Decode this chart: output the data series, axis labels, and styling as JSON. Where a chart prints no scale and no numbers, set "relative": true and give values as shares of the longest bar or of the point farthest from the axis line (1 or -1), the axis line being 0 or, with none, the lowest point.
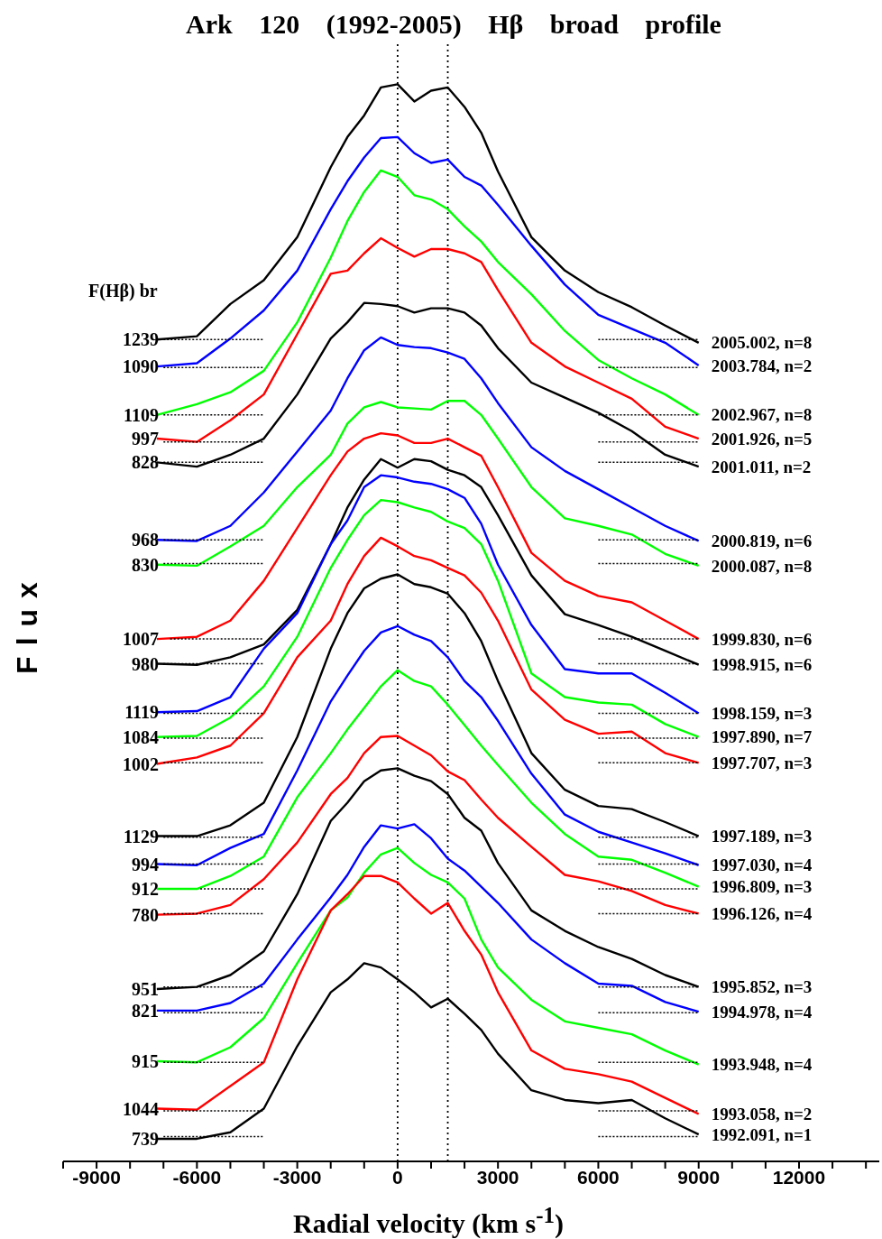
{
  "chart_data": {
    "type": "line",
    "relative": true,
    "title": "Ark 120 (1992-2005) Hβ broad profile",
    "xlabel": "Radial velocity (km s$^{-1}$)",
    "ylabel": "Flux",
    "tick_labels": "x",
    "xlim": [
      -10000,
      14400
    ],
    "xticks": [
      {
        "value": -10000,
        "label": null
      },
      -9000,
      {
        "value": -8000,
        "label": null
      },
      {
        "value": -7000,
        "label": null
      },
      -6000,
      {
        "value": -5000,
        "label": null
      },
      {
        "value": -4000,
        "label": null
      },
      -3000,
      {
        "value": -2000,
        "label": null
      },
      {
        "value": -1000,
        "label": null
      },
      0,
      {
        "value": 1000,
        "label": null
      },
      {
        "value": 2000,
        "label": null
      },
      3000,
      {
        "value": 4000,
        "label": null
      },
      {
        "value": 5000,
        "label": null
      },
      6000,
      {
        "value": 7000,
        "label": null
      },
      {
        "value": 8000,
        "label": null
      },
      9000,
      {
        "value": 10000,
        "label": null
      },
      {
        "value": 11000,
        "label": null
      },
      12000,
      {
        "value": 13000,
        "label": null
      },
      {
        "value": 14000,
        "label": null
      }
    ],
    "ref_lines": [
      {
        "axis": "x",
        "value": 0,
        "color": "#000000",
        "line_style": "dotted"
      },
      {
        "axis": "x",
        "value": 1500,
        "color": "#000000",
        "line_style": "dotted"
      }
    ],
    "x": [
      -7200,
      -6000,
      -5000,
      -4000,
      -3000,
      -2000,
      -1500,
      -1000,
      -500,
      0,
      500,
      1000,
      1500,
      2000,
      2500,
      3000,
      4000,
      5000,
      6000,
      7000,
      8000,
      9000
    ],
    "series": [
      {
        "name": "2005.002, n=8",
        "color": "#000000",
        "values": [
          0.763,
          0.766,
          0.796,
          0.818,
          0.858,
          0.923,
          0.951,
          0.971,
          0.997,
          1.0,
          0.984,
          0.994,
          0.997,
          0.979,
          0.955,
          0.919,
          0.858,
          0.827,
          0.807,
          0.793,
          0.776,
          0.76
        ]
      },
      {
        "name": "2003.784, n=2",
        "color": "#0000ff",
        "values": [
          0.738,
          0.741,
          0.764,
          0.79,
          0.827,
          0.884,
          0.91,
          0.932,
          0.95,
          0.951,
          0.936,
          0.927,
          0.93,
          0.914,
          0.906,
          0.888,
          0.85,
          0.814,
          0.786,
          0.773,
          0.76,
          0.739
        ]
      },
      {
        "name": "2002.967, n=8",
        "color": "#00ff00",
        "values": [
          0.693,
          0.703,
          0.714,
          0.734,
          0.779,
          0.839,
          0.873,
          0.9,
          0.92,
          0.914,
          0.897,
          0.893,
          0.884,
          0.868,
          0.854,
          0.835,
          0.805,
          0.771,
          0.744,
          0.727,
          0.712,
          0.693
        ]
      },
      {
        "name": "2001.926, n=5",
        "color": "#ff0000",
        "values": [
          0.671,
          0.668,
          0.688,
          0.712,
          0.768,
          0.824,
          0.827,
          0.843,
          0.857,
          0.848,
          0.84,
          0.847,
          0.847,
          0.843,
          0.835,
          0.809,
          0.76,
          0.738,
          0.723,
          0.708,
          0.682,
          0.671
        ]
      },
      {
        "name": "2001.011, n=2",
        "color": "#000000",
        "values": [
          0.649,
          0.645,
          0.656,
          0.671,
          0.712,
          0.764,
          0.779,
          0.797,
          0.796,
          0.794,
          0.788,
          0.792,
          0.792,
          0.788,
          0.776,
          0.755,
          0.723,
          0.709,
          0.695,
          0.678,
          0.656,
          0.645
        ]
      },
      {
        "name": "2000.819, n=6",
        "color": "#0000ff",
        "values": [
          0.577,
          0.576,
          0.59,
          0.621,
          0.659,
          0.697,
          0.727,
          0.753,
          0.765,
          0.758,
          0.756,
          0.755,
          0.751,
          0.745,
          0.727,
          0.704,
          0.663,
          0.641,
          0.624,
          0.607,
          0.59,
          0.576
        ]
      },
      {
        "name": "2000.087, n=8",
        "color": "#00ff00",
        "values": [
          0.554,
          0.553,
          0.571,
          0.59,
          0.626,
          0.656,
          0.685,
          0.7,
          0.705,
          0.7,
          0.699,
          0.698,
          0.706,
          0.706,
          0.693,
          0.671,
          0.626,
          0.597,
          0.59,
          0.582,
          0.564,
          0.553
        ]
      },
      {
        "name": "1999.830, n=6",
        "color": "#ff0000",
        "values": [
          0.485,
          0.487,
          0.502,
          0.539,
          0.588,
          0.637,
          0.659,
          0.671,
          0.676,
          0.674,
          0.667,
          0.667,
          0.671,
          0.663,
          0.655,
          0.626,
          0.565,
          0.539,
          0.525,
          0.519,
          0.502,
          0.485
        ]
      },
      {
        "name": "1998.915, n=6",
        "color": "#000000",
        "values": [
          0.462,
          0.461,
          0.468,
          0.48,
          0.512,
          0.573,
          0.607,
          0.633,
          0.652,
          0.644,
          0.652,
          0.65,
          0.642,
          0.637,
          0.626,
          0.6,
          0.544,
          0.508,
          0.498,
          0.487,
          0.474,
          0.461
        ]
      },
      {
        "name": "1998.159, n=3",
        "color": "#0000ff",
        "values": [
          0.417,
          0.418,
          0.431,
          0.476,
          0.509,
          0.573,
          0.595,
          0.626,
          0.637,
          0.635,
          0.631,
          0.629,
          0.624,
          0.616,
          0.592,
          0.554,
          0.498,
          0.457,
          0.453,
          0.453,
          0.435,
          0.416
        ]
      },
      {
        "name": "1997.890, n=7",
        "color": "#00ff00",
        "values": [
          0.394,
          0.395,
          0.412,
          0.441,
          0.487,
          0.551,
          0.577,
          0.6,
          0.614,
          0.612,
          0.607,
          0.603,
          0.594,
          0.588,
          0.573,
          0.539,
          0.453,
          0.431,
          0.426,
          0.424,
          0.406,
          0.394
        ]
      },
      {
        "name": "1997.707, n=3",
        "color": "#ff0000",
        "values": [
          0.369,
          0.375,
          0.386,
          0.416,
          0.468,
          0.502,
          0.536,
          0.562,
          0.579,
          0.571,
          0.562,
          0.558,
          0.551,
          0.544,
          0.528,
          0.502,
          0.438,
          0.41,
          0.397,
          0.399,
          0.379,
          0.37
        ]
      },
      {
        "name": "1997.189, n=3",
        "color": "#000000",
        "values": [
          0.302,
          0.302,
          0.312,
          0.333,
          0.394,
          0.476,
          0.509,
          0.532,
          0.541,
          0.545,
          0.536,
          0.533,
          0.527,
          0.509,
          0.483,
          0.446,
          0.379,
          0.345,
          0.33,
          0.327,
          0.315,
          0.302
        ]
      },
      {
        "name": "1997.030, n=4",
        "color": "#0000ff",
        "values": [
          0.276,
          0.275,
          0.291,
          0.304,
          0.363,
          0.427,
          0.451,
          0.474,
          0.491,
          0.497,
          0.489,
          0.483,
          0.468,
          0.446,
          0.431,
          0.409,
          0.36,
          0.322,
          0.306,
          0.296,
          0.286,
          0.275
        ]
      },
      {
        "name": "1996.809, n=3",
        "color": "#00ff00",
        "values": [
          0.253,
          0.253,
          0.265,
          0.283,
          0.338,
          0.379,
          0.401,
          0.421,
          0.441,
          0.456,
          0.446,
          0.441,
          0.424,
          0.405,
          0.386,
          0.368,
          0.333,
          0.304,
          0.283,
          0.28,
          0.268,
          0.255
        ]
      },
      {
        "name": "1996.126, n=4",
        "color": "#ff0000",
        "values": [
          0.229,
          0.23,
          0.238,
          0.262,
          0.296,
          0.341,
          0.356,
          0.379,
          0.394,
          0.395,
          0.386,
          0.377,
          0.362,
          0.354,
          0.336,
          0.319,
          0.292,
          0.266,
          0.26,
          0.251,
          0.238,
          0.23
        ]
      },
      {
        "name": "1995.852, n=3",
        "color": "#000000",
        "values": [
          0.16,
          0.162,
          0.173,
          0.195,
          0.248,
          0.316,
          0.333,
          0.353,
          0.363,
          0.365,
          0.358,
          0.353,
          0.341,
          0.319,
          0.307,
          0.277,
          0.233,
          0.214,
          0.199,
          0.188,
          0.173,
          0.162
        ]
      },
      {
        "name": "1994.978, n=4",
        "color": "#0000ff",
        "values": [
          0.14,
          0.14,
          0.147,
          0.165,
          0.206,
          0.245,
          0.266,
          0.292,
          0.312,
          0.309,
          0.313,
          0.3,
          0.281,
          0.27,
          0.255,
          0.24,
          0.206,
          0.184,
          0.165,
          0.163,
          0.148,
          0.139
        ]
      },
      {
        "name": "1993.948, n=4",
        "color": "#00ff00",
        "values": [
          0.093,
          0.092,
          0.106,
          0.133,
          0.184,
          0.233,
          0.245,
          0.268,
          0.285,
          0.291,
          0.277,
          0.266,
          0.259,
          0.244,
          0.206,
          0.18,
          0.15,
          0.13,
          0.124,
          0.118,
          0.103,
          0.09
        ]
      },
      {
        "name": "1993.058, n=2",
        "color": "#ff0000",
        "values": [
          0.049,
          0.048,
          0.07,
          0.092,
          0.169,
          0.233,
          0.248,
          0.265,
          0.265,
          0.259,
          0.244,
          0.23,
          0.24,
          0.214,
          0.192,
          0.157,
          0.103,
          0.086,
          0.081,
          0.074,
          0.059,
          0.044
        ]
      },
      {
        "name": "1992.091, n=1",
        "color": "#000000",
        "values": [
          0.021,
          0.021,
          0.027,
          0.049,
          0.107,
          0.157,
          0.169,
          0.184,
          0.18,
          0.169,
          0.157,
          0.143,
          0.151,
          0.137,
          0.122,
          0.1,
          0.066,
          0.057,
          0.054,
          0.057,
          0.04,
          0.025
        ]
      },
      {
        "type": "line",
        "line_style": "dotted",
        "color": "#000000",
        "x": [
          -7000,
          -4000,
          0,
          6000,
          9000
        ],
        "values": [
          0.763,
          0.763,
          null,
          0.763,
          0.763
        ]
      },
      {
        "type": "line",
        "line_style": "dotted",
        "color": "#000000",
        "x": [
          -7000,
          -4000,
          0,
          6000,
          9000
        ],
        "values": [
          0.737,
          0.737,
          null,
          0.737,
          0.737
        ]
      },
      {
        "type": "line",
        "line_style": "dotted",
        "color": "#000000",
        "x": [
          -7000,
          -4000,
          0,
          6000,
          9000
        ],
        "values": [
          0.693,
          0.693,
          null,
          0.693,
          0.693
        ]
      },
      {
        "type": "line",
        "line_style": "dotted",
        "color": "#000000",
        "x": [
          -7000,
          -4000,
          0,
          6000,
          9000
        ],
        "values": [
          0.668,
          0.668,
          null,
          0.668,
          0.668
        ]
      },
      {
        "type": "line",
        "line_style": "dotted",
        "color": "#000000",
        "x": [
          -7000,
          -4000,
          0,
          6000,
          9000
        ],
        "values": [
          0.649,
          0.649,
          null,
          0.649,
          0.649
        ]
      },
      {
        "type": "line",
        "line_style": "dotted",
        "color": "#000000",
        "x": [
          -7000,
          -4000,
          0,
          6000,
          9000
        ],
        "values": [
          0.577,
          0.577,
          null,
          0.577,
          0.577
        ]
      },
      {
        "type": "line",
        "line_style": "dotted",
        "color": "#000000",
        "x": [
          -7000,
          -4000,
          0,
          6000,
          9000
        ],
        "values": [
          0.555,
          0.555,
          null,
          0.555,
          0.555
        ]
      },
      {
        "type": "line",
        "line_style": "dotted",
        "color": "#000000",
        "x": [
          -6800,
          -4000,
          0,
          6000,
          9000
        ],
        "values": [
          0.485,
          0.485,
          null,
          0.485,
          0.485
        ]
      },
      {
        "type": "line",
        "line_style": "dotted",
        "color": "#000000",
        "x": [
          -7000,
          -4000,
          0,
          6000,
          9000
        ],
        "values": [
          0.462,
          0.462,
          null,
          0.462,
          0.462
        ]
      },
      {
        "type": "line",
        "line_style": "dotted",
        "color": "#000000",
        "x": [
          -7000,
          -4000,
          0,
          6000,
          9000
        ],
        "values": [
          0.416,
          0.416,
          null,
          0.416,
          0.416
        ]
      },
      {
        "type": "line",
        "line_style": "dotted",
        "color": "#000000",
        "x": [
          -7000,
          -4000,
          0,
          6000,
          9000
        ],
        "values": [
          0.393,
          0.393,
          null,
          0.393,
          0.393
        ]
      },
      {
        "type": "line",
        "line_style": "dotted",
        "color": "#000000",
        "x": [
          -7000,
          -4000,
          0,
          6000,
          9000
        ],
        "values": [
          0.37,
          0.37,
          null,
          0.37,
          0.37
        ]
      },
      {
        "type": "line",
        "line_style": "dotted",
        "color": "#000000",
        "x": [
          -7000,
          -4000,
          0,
          6000,
          9000
        ],
        "values": [
          0.301,
          0.301,
          null,
          0.301,
          0.301
        ]
      },
      {
        "type": "line",
        "line_style": "dotted",
        "color": "#000000",
        "x": [
          -7000,
          -4000,
          0,
          6000,
          9000
        ],
        "values": [
          0.276,
          0.276,
          null,
          0.276,
          0.276
        ]
      },
      {
        "type": "line",
        "line_style": "dotted",
        "color": "#000000",
        "x": [
          -5900,
          -4000,
          0,
          6000,
          9000
        ],
        "values": [
          0.253,
          0.253,
          null,
          0.253,
          0.253
        ]
      },
      {
        "type": "line",
        "line_style": "dotted",
        "color": "#000000",
        "x": [
          -7000,
          -4000,
          0,
          6000,
          9000
        ],
        "values": [
          0.23,
          0.23,
          null,
          0.23,
          0.23
        ]
      },
      {
        "type": "line",
        "line_style": "dotted",
        "color": "#000000",
        "x": [
          -7000,
          -4000,
          0,
          6000,
          9000
        ],
        "values": [
          0.162,
          0.162,
          null,
          0.162,
          0.162
        ]
      },
      {
        "type": "line",
        "line_style": "dotted",
        "color": "#000000",
        "x": [
          -7000,
          -4000,
          0,
          6000,
          9000
        ],
        "values": [
          0.138,
          0.138,
          null,
          0.138,
          0.138
        ]
      },
      {
        "type": "line",
        "line_style": "dotted",
        "color": "#000000",
        "x": [
          -7000,
          -4000,
          0,
          6000,
          9000
        ],
        "values": [
          0.092,
          0.092,
          null,
          0.092,
          0.092
        ]
      },
      {
        "type": "line",
        "line_style": "dotted",
        "color": "#000000",
        "x": [
          -7000,
          -4000,
          0,
          6000,
          9000
        ],
        "values": [
          0.047,
          0.047,
          null,
          0.047,
          0.047
        ]
      },
      {
        "type": "line",
        "line_style": "dotted",
        "color": "#000000",
        "x": [
          -7000,
          -4000,
          0,
          6000,
          9000
        ],
        "values": [
          0.023,
          0.023,
          null,
          0.023,
          0.023
        ]
      }
    ],
    "annotations": [
      "F(Hβ) br",
      "1239",
      "1090",
      "1109",
      "997",
      "828",
      "968",
      "830",
      "1007",
      "980",
      "1119",
      "1084",
      "1002",
      "1129",
      "994",
      "912",
      "780",
      "951",
      "821",
      "915",
      "1044",
      "739"
    ]
  }
}
